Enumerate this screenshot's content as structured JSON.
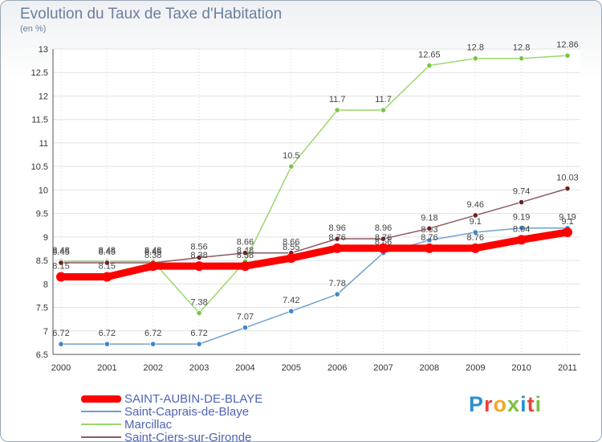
{
  "header": {
    "title": "Evolution du Taux de Taxe d'Habitation",
    "subtitle": "(en %)"
  },
  "chart_data": {
    "type": "line",
    "title": "Evolution du Taux de Taxe d'Habitation",
    "ylabel": "(en %)",
    "xlabel": "",
    "ylim": [
      6.5,
      13
    ],
    "yticks": [
      "6.5",
      "7",
      "7.5",
      "8",
      "8.5",
      "9",
      "9.5",
      "10",
      "10.5",
      "11",
      "11.5",
      "12",
      "12.5",
      "13"
    ],
    "categories": [
      "2000",
      "2001",
      "2002",
      "2003",
      "2004",
      "2005",
      "2006",
      "2007",
      "2008",
      "2009",
      "2010",
      "2011"
    ],
    "grid": true,
    "series": [
      {
        "name": "Saint-Caprais-de-Blaye",
        "color": "#6fa1cf",
        "marker": "#3f86c8",
        "values": [
          6.72,
          6.72,
          6.72,
          6.72,
          7.07,
          7.42,
          7.78,
          8.66,
          8.93,
          9.1,
          9.19,
          9.19
        ],
        "labels": [
          "6.72",
          "6.72",
          "6.72",
          "6.72",
          "7.07",
          "7.42",
          "7.78",
          "8.66",
          "8.93",
          "9.1",
          "9.19",
          "9.19"
        ]
      },
      {
        "name": "Marcillac",
        "color": "#9bd76a",
        "marker": "#7cc447",
        "values": [
          8.48,
          8.48,
          8.48,
          7.38,
          8.48,
          10.5,
          11.7,
          11.7,
          12.65,
          12.8,
          12.8,
          12.86
        ],
        "labels": [
          "8.48",
          "8.48",
          "8.48",
          "7.38",
          "8.48",
          "10.5",
          "11.7",
          "11.7",
          "12.65",
          "12.8",
          "12.8",
          "12.86"
        ]
      },
      {
        "name": "Saint-Ciers-sur-Gironde",
        "color": "#8c5a5f",
        "marker": "#6e1f22",
        "values": [
          8.45,
          8.45,
          8.45,
          8.56,
          8.66,
          8.66,
          8.96,
          8.96,
          9.18,
          9.46,
          9.74,
          10.03
        ],
        "labels": [
          "8.45",
          "8.45",
          "8.45",
          "8.56",
          "8.66",
          "8.66",
          "8.96",
          "8.96",
          "9.18",
          "9.46",
          "9.74",
          "10.03"
        ]
      },
      {
        "name": "SAINT-AUBIN-DE-BLAYE",
        "color": "#ff0000",
        "marker": "#ff0000",
        "thick": true,
        "values": [
          8.15,
          8.15,
          8.38,
          8.38,
          8.38,
          8.55,
          8.76,
          8.76,
          8.76,
          8.76,
          8.94,
          9.1
        ],
        "labels": [
          "8.15",
          "8.15",
          "8.38",
          "8.38",
          "8.38",
          "8.55",
          "8.76",
          "8.76",
          "8.76",
          "8.76",
          "8.94",
          "9.1"
        ]
      }
    ]
  },
  "legend": {
    "items": [
      {
        "label": "SAINT-AUBIN-DE-BLAYE",
        "color": "#ff0000"
      },
      {
        "label": "Saint-Caprais-de-Blaye",
        "color": "#6fa1cf"
      },
      {
        "label": "Marcillac",
        "color": "#9bd76a"
      },
      {
        "label": "Saint-Ciers-sur-Gironde",
        "color": "#8c5a5f"
      }
    ]
  },
  "logo": {
    "letters": [
      "P",
      "r",
      "o",
      "x",
      "i",
      "t",
      "i"
    ],
    "colors": [
      "#2a8fd6",
      "#e8423a",
      "#f5a623",
      "#7ac142",
      "#2a8fd6",
      "#e8423a",
      "#7ac142"
    ]
  }
}
